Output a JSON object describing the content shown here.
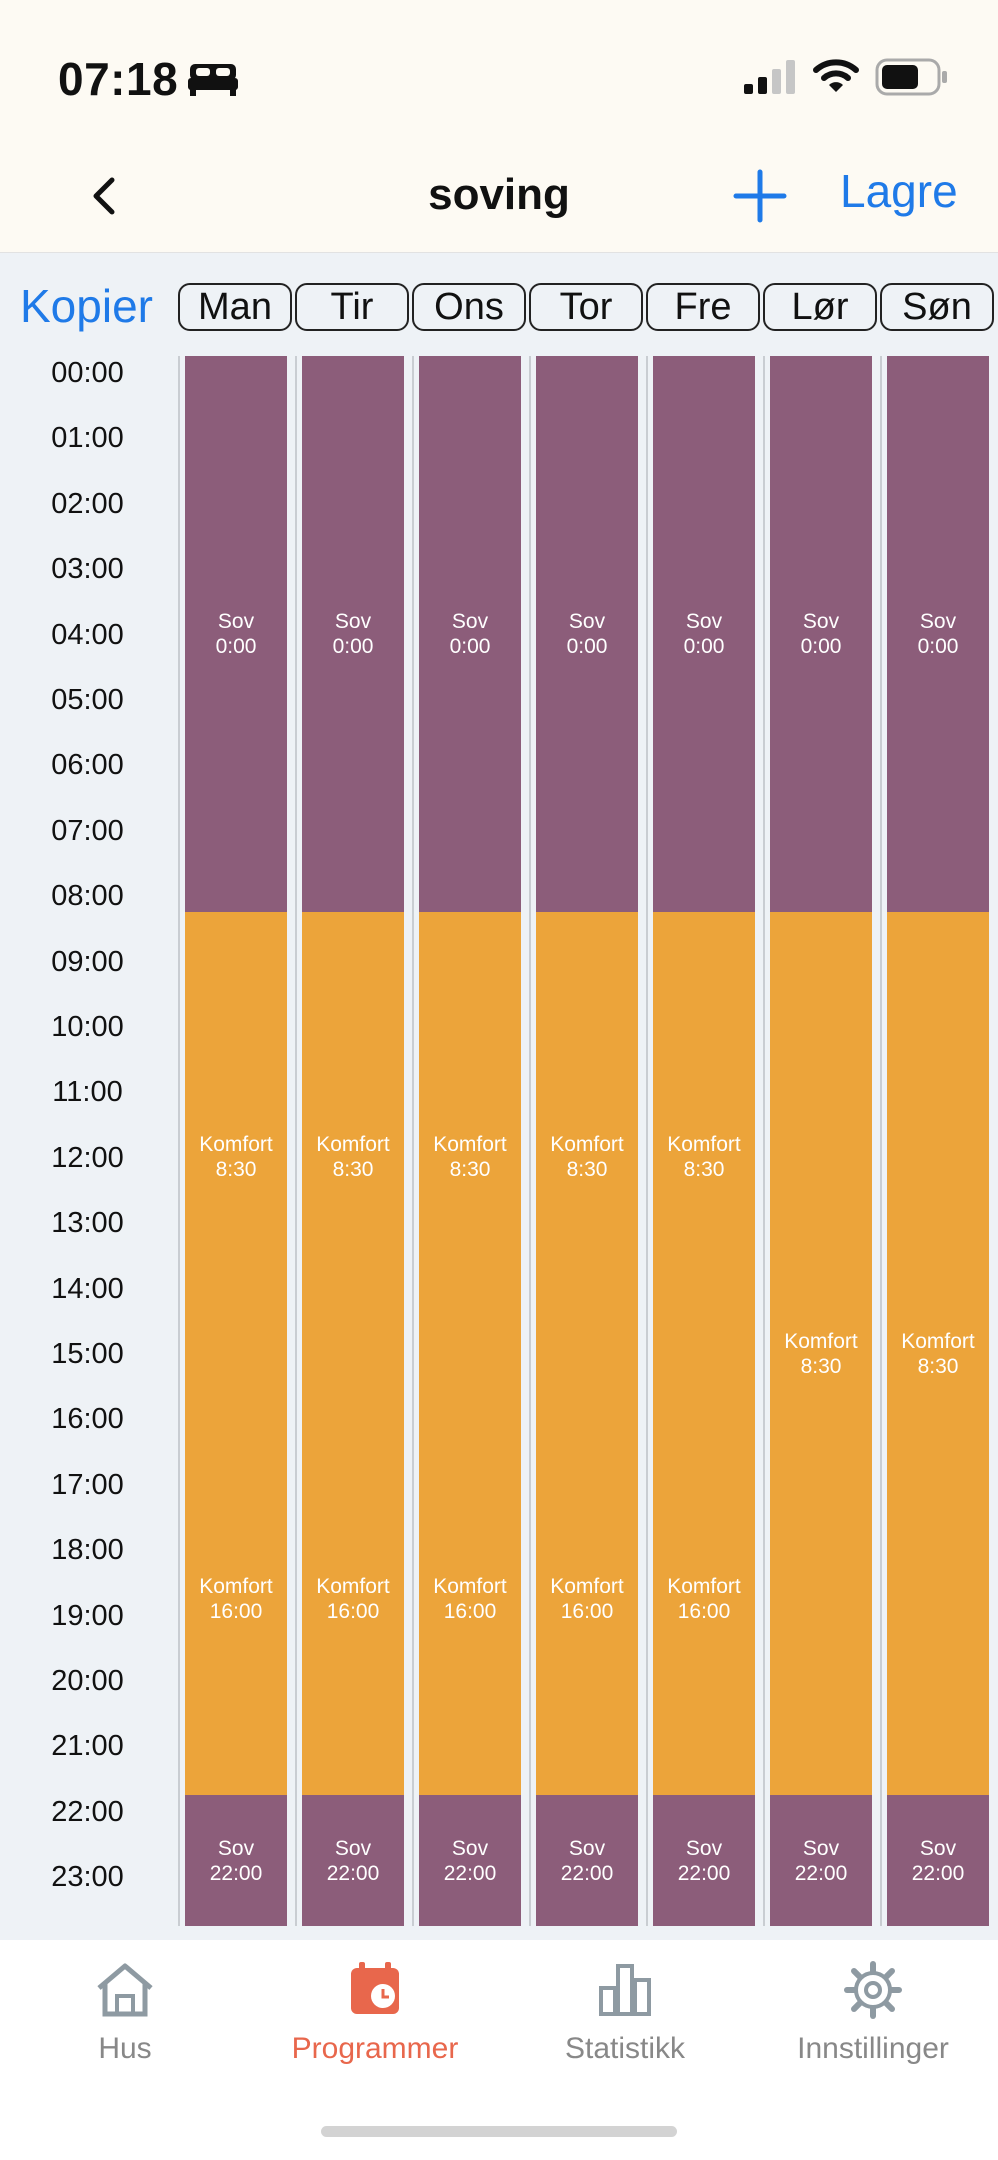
{
  "status_bar": {
    "time": "07:18",
    "icons": [
      "bed-icon",
      "cellular-signal-icon",
      "wifi-icon",
      "battery-icon"
    ]
  },
  "nav": {
    "back_icon": "chevron-left-icon",
    "title": "soving",
    "add_icon": "plus-icon",
    "save_label": "Lagre"
  },
  "schedule": {
    "copy_label": "Kopier",
    "days": [
      "Man",
      "Tir",
      "Ons",
      "Tor",
      "Fre",
      "Lør",
      "Søn"
    ],
    "hours": [
      "00:00",
      "01:00",
      "02:00",
      "03:00",
      "04:00",
      "05:00",
      "06:00",
      "07:00",
      "08:00",
      "09:00",
      "10:00",
      "11:00",
      "12:00",
      "13:00",
      "14:00",
      "15:00",
      "16:00",
      "17:00",
      "18:00",
      "19:00",
      "20:00",
      "21:00",
      "22:00",
      "23:00"
    ],
    "weekday_segments": [
      {
        "mode": "Sov",
        "start": "0:00"
      },
      {
        "mode": "Komfort",
        "start": "8:30"
      },
      {
        "mode": "Komfort",
        "start": "16:00"
      },
      {
        "mode": "Sov",
        "start": "22:00"
      }
    ],
    "weekend_segments": [
      {
        "mode": "Sov",
        "start": "0:00"
      },
      {
        "mode": "Komfort",
        "start": "8:30"
      },
      {
        "mode": "Sov",
        "start": "22:00"
      }
    ],
    "colors": {
      "sleep": "#8c5d7a",
      "comfort": "#eca43a"
    }
  },
  "tabs": [
    {
      "label": "Hus",
      "icon": "house-icon",
      "active": false
    },
    {
      "label": "Programmer",
      "icon": "calendar-clock-icon",
      "active": true
    },
    {
      "label": "Statistikk",
      "icon": "bar-chart-icon",
      "active": false
    },
    {
      "label": "Innstillinger",
      "icon": "gear-icon",
      "active": false
    }
  ],
  "accent_colors": {
    "link": "#1f7ae8",
    "active_tab": "#e8674c"
  }
}
